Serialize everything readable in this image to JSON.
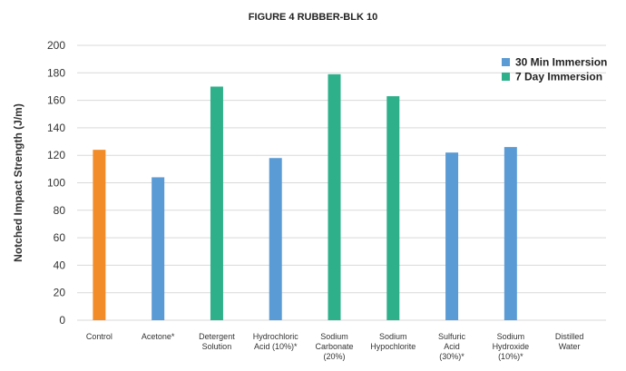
{
  "chart_data": {
    "type": "bar",
    "title": "FIGURE 4 RUBBER-BLK 10",
    "ylabel": "Notched Impact Strength (J/m)",
    "xlabel": "",
    "ylim": [
      0,
      200
    ],
    "yticks": [
      0,
      20,
      40,
      60,
      80,
      100,
      120,
      140,
      160,
      180,
      200
    ],
    "grid": true,
    "legend_position": "top-right",
    "legend": [
      {
        "name": "30 Min Immersion",
        "color": "#5b9bd5"
      },
      {
        "name": "7 Day Immersion",
        "color": "#2eb08a"
      }
    ],
    "categories": [
      [
        "Control"
      ],
      [
        "Acetone*"
      ],
      [
        "Detergent",
        "Solution"
      ],
      [
        "Hydrochloric",
        "Acid (10%)*"
      ],
      [
        "Sodium",
        "Carbonate",
        "(20%)"
      ],
      [
        "Sodium",
        "Hypochlorite"
      ],
      [
        "Sulfuric",
        "Acid",
        "(30%)*"
      ],
      [
        "Sodium",
        "Hydroxide",
        "(10%)*"
      ],
      [
        "Distilled",
        "Water"
      ]
    ],
    "bars": [
      {
        "category_index": 0,
        "value": 124,
        "color": "#f28c28"
      },
      {
        "category_index": 1,
        "value": 104,
        "color": "#5b9bd5"
      },
      {
        "category_index": 2,
        "value": 170,
        "color": "#2eb08a"
      },
      {
        "category_index": 3,
        "value": 118,
        "color": "#5b9bd5"
      },
      {
        "category_index": 4,
        "value": 179,
        "color": "#2eb08a"
      },
      {
        "category_index": 5,
        "value": 163,
        "color": "#2eb08a"
      },
      {
        "category_index": 6,
        "value": 122,
        "color": "#5b9bd5"
      },
      {
        "category_index": 7,
        "value": 126,
        "color": "#5b9bd5"
      }
    ]
  }
}
